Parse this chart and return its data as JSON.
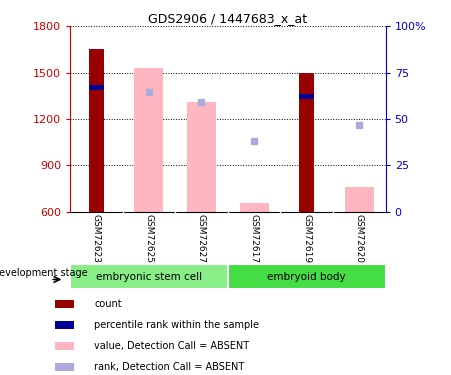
{
  "title": "GDS2906 / 1447683_x_at",
  "samples": [
    "GSM72623",
    "GSM72625",
    "GSM72627",
    "GSM72617",
    "GSM72619",
    "GSM72620"
  ],
  "groups": [
    {
      "label": "embryonic stem cell",
      "n": 3,
      "color": "#88EE88"
    },
    {
      "label": "embryoid body",
      "n": 3,
      "color": "#44DD44"
    }
  ],
  "ylim_left": [
    600,
    1800
  ],
  "ylim_right": [
    0,
    100
  ],
  "yticks_left": [
    600,
    900,
    1200,
    1500,
    1800
  ],
  "yticks_right": [
    0,
    25,
    50,
    75,
    100
  ],
  "yticklabels_right": [
    "0",
    "25",
    "50",
    "75",
    "100%"
  ],
  "count_bars": {
    "GSM72623": 1650,
    "GSM72619": 1500
  },
  "count_color": "#990000",
  "percentile_bars": {
    "GSM72623": [
      1390,
      1420
    ],
    "GSM72619": [
      1330,
      1360
    ]
  },
  "percentile_color": "#000099",
  "absent_value_bars": {
    "GSM72625": 1530,
    "GSM72627": 1310,
    "GSM72617": 660,
    "GSM72620": 760
  },
  "absent_value_color": "#FFB6C1",
  "absent_rank_dots": {
    "GSM72625": 1375,
    "GSM72627": 1310,
    "GSM72617": 1060,
    "GSM72620": 1160
  },
  "absent_rank_color": "#AAAADD",
  "background_color": "#FFFFFF",
  "tick_label_color_left": "#CC0000",
  "tick_label_color_right": "#0000CC",
  "grid_color": "#000000",
  "xlabel_area_color": "#C8C8C8",
  "legend_items": [
    {
      "label": "count",
      "color": "#990000"
    },
    {
      "label": "percentile rank within the sample",
      "color": "#000099"
    },
    {
      "label": "value, Detection Call = ABSENT",
      "color": "#FFB6C1"
    },
    {
      "label": "rank, Detection Call = ABSENT",
      "color": "#AAAADD"
    }
  ],
  "development_stage_label": "development stage",
  "figsize": [
    4.51,
    3.75
  ],
  "dpi": 100
}
